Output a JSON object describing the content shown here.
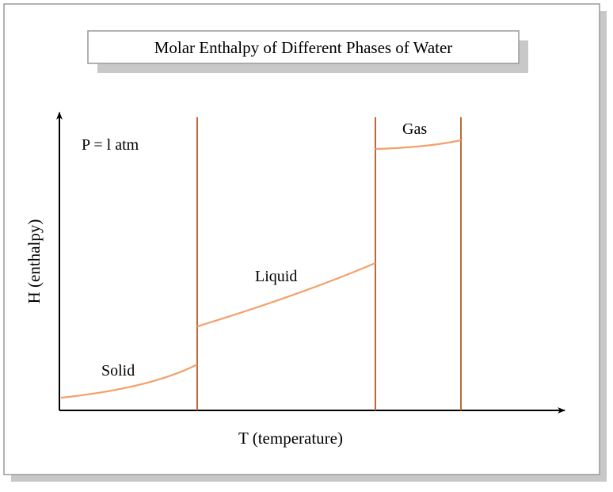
{
  "title": "Molar Enthalpy of Different Phases of Water",
  "condition": "P = l atm",
  "phases": [
    "Solid",
    "Liquid",
    "Gas"
  ],
  "x_axis_label": "T (temperature)",
  "y_axis_label": "H (enthalpy)"
}
